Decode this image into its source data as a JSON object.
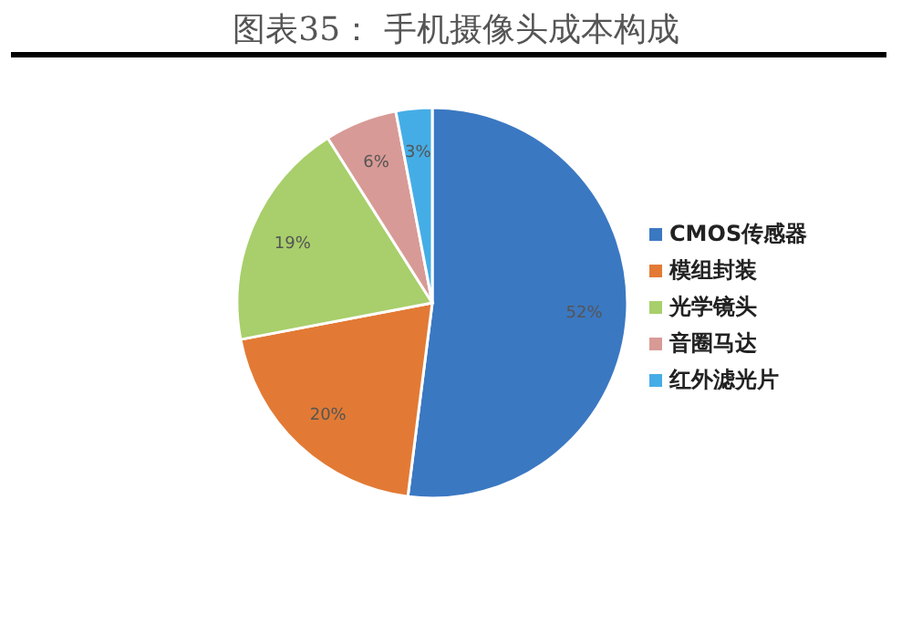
{
  "chart_data": {
    "type": "pie",
    "title": "图表35： 手机摄像头成本构成",
    "categories": [
      "CMOS传感器",
      "模组封装",
      "光学镜头",
      "音圈马达",
      "红外滤光片"
    ],
    "values": [
      52,
      20,
      19,
      6,
      3
    ],
    "colors": [
      "#3b78c2",
      "#e27a35",
      "#a8cf6b",
      "#d89a96",
      "#45ade6"
    ],
    "value_labels": [
      "52%",
      "20%",
      "19%",
      "6%",
      "3%"
    ],
    "legend": "right"
  }
}
